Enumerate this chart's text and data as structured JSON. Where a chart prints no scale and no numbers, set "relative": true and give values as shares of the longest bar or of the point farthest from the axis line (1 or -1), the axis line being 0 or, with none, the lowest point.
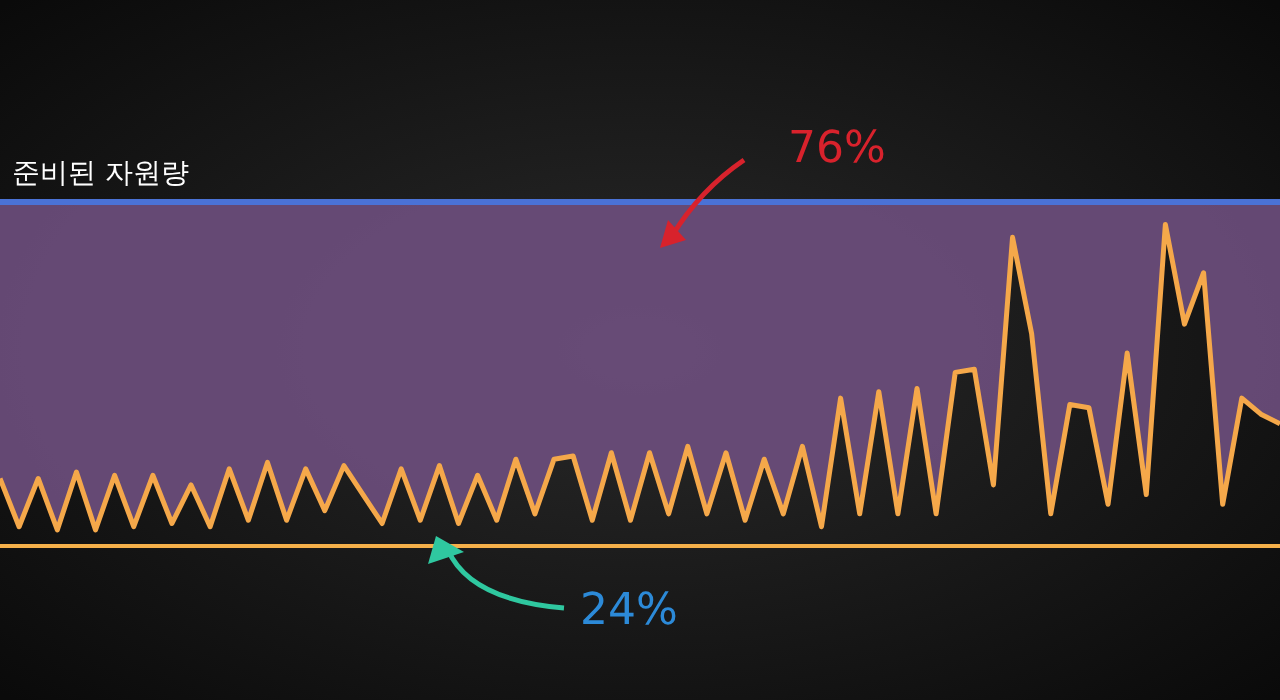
{
  "chart_data": {
    "type": "line",
    "relative": true,
    "categories": [
      null,
      null,
      null,
      null,
      null,
      null,
      null,
      null,
      null,
      null,
      null,
      null,
      null,
      null,
      null,
      null,
      null,
      null,
      null,
      null,
      null,
      null,
      null,
      null,
      null,
      null,
      null,
      null,
      null,
      null,
      null,
      null,
      null,
      null,
      null,
      null,
      null,
      null,
      null,
      null,
      null,
      null,
      null,
      null,
      null,
      null,
      null,
      null,
      null,
      null,
      null,
      null,
      null,
      null,
      null,
      null,
      null,
      null,
      null,
      null,
      null,
      null,
      null,
      null,
      null,
      null,
      null,
      null
    ],
    "series": [
      {
        "color": "#f5a84a",
        "values": [
          0.21,
          0.06,
          0.21,
          0.05,
          0.23,
          0.05,
          0.22,
          0.06,
          0.22,
          0.07,
          0.19,
          0.06,
          0.24,
          0.08,
          0.26,
          0.08,
          0.24,
          0.11,
          0.25,
          0.16,
          0.07,
          0.24,
          0.08,
          0.25,
          0.07,
          0.22,
          0.08,
          0.27,
          0.1,
          0.27,
          0.28,
          0.08,
          0.29,
          0.08,
          0.29,
          0.1,
          0.31,
          0.1,
          0.29,
          0.08,
          0.27,
          0.1,
          0.31,
          0.06,
          0.46,
          0.1,
          0.48,
          0.1,
          0.49,
          0.1,
          0.54,
          0.55,
          0.19,
          0.96,
          0.66,
          0.1,
          0.44,
          0.43,
          0.13,
          0.6,
          0.16,
          1,
          0.69,
          0.85,
          0.13,
          0.46,
          0.41,
          0.38
        ],
        "lower": [
          0.21,
          0.06,
          0.21,
          0.05,
          0.23,
          0.05,
          0.22,
          0.06,
          0.22,
          0.07,
          0.19,
          0.06,
          0.24,
          0.08,
          0.26,
          0.08,
          0.24,
          0.11,
          0.25,
          0.16,
          0.07,
          0.24,
          0.08,
          0.25,
          0.07,
          0.22,
          0.08,
          0.27,
          0.1,
          0.27,
          0.28,
          0.08,
          0.29,
          0.08,
          0.29,
          0.1,
          0.31,
          0.1,
          0.29,
          0.08,
          0.27,
          0.1,
          0.31,
          0.06,
          0.46,
          0.1,
          0.48,
          0.1,
          0.49,
          0.1,
          0.54,
          0.55,
          0.19,
          0.96,
          0.66,
          0.1,
          0.44,
          0.43,
          0.13,
          0.6,
          0.16,
          1,
          0.69,
          0.85,
          0.13,
          0.46,
          0.41,
          0.38
        ],
        "upper": [
          1.07,
          1.07,
          1.07,
          1.07,
          1.07,
          1.07,
          1.07,
          1.07,
          1.07,
          1.07,
          1.07,
          1.07,
          1.07,
          1.07,
          1.07,
          1.07,
          1.07,
          1.07,
          1.07,
          1.07,
          1.07,
          1.07,
          1.07,
          1.07,
          1.07,
          1.07,
          1.07,
          1.07,
          1.07,
          1.07,
          1.07,
          1.07,
          1.07,
          1.07,
          1.07,
          1.07,
          1.07,
          1.07,
          1.07,
          1.07,
          1.07,
          1.07,
          1.07,
          1.07,
          1.07,
          1.07,
          1.07,
          1.07,
          1.07,
          1.07,
          1.07,
          1.07,
          1.07,
          1.07,
          1.07,
          1.07,
          1.07,
          1.07,
          1.07,
          1.07,
          1.07,
          1.07,
          1.07,
          1.07,
          1.07,
          1.07,
          1.07,
          1.07
        ]
      }
    ],
    "ref_lines": [
      {
        "axis": "y",
        "value": 1.07,
        "label": "준비된 자원량",
        "color": "#4a72d6"
      }
    ],
    "annotations": [
      "76%",
      "24%"
    ],
    "line_style": "solid",
    "marker": "none"
  }
}
